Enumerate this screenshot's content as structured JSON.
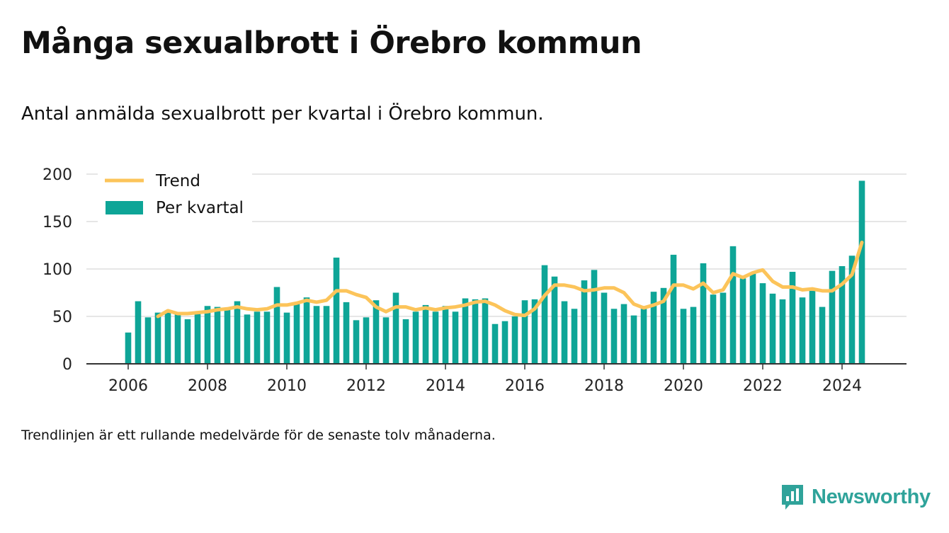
{
  "header": {
    "title": "Många sexualbrott i Örebro kommun",
    "subtitle": "Antal anmälda sexualbrott per kvartal i Örebro kommun."
  },
  "footer": {
    "note": "Trendlinjen är ett rullande medelvärde för de senaste tolv månaderna.",
    "brand": "Newsworthy",
    "brand_icon": "bar-chart-speech-bubble-icon"
  },
  "colors": {
    "bars": "#0ea597",
    "trend": "#fcc45a",
    "grid": "#dddddd",
    "axis": "#333333",
    "brand": "#2fa39a"
  },
  "chart_data": {
    "type": "bar",
    "x_unit": "quarter",
    "x_start": "2006 Q1",
    "x_end": "2024 Q3",
    "ylim": [
      0,
      200
    ],
    "yticks": [
      "0",
      "50",
      "100",
      "150",
      "200"
    ],
    "xticks": [
      "2006",
      "2008",
      "2010",
      "2012",
      "2014",
      "2016",
      "2018",
      "2020",
      "2022",
      "2024"
    ],
    "grid": "horizontal",
    "legend_position": "top-left",
    "series": [
      {
        "name": "Per kvartal",
        "kind": "bar",
        "values": [
          33,
          66,
          49,
          54,
          55,
          52,
          47,
          55,
          61,
          60,
          57,
          66,
          52,
          55,
          55,
          81,
          54,
          64,
          70,
          61,
          61,
          112,
          65,
          46,
          49,
          67,
          49,
          75,
          47,
          55,
          62,
          55,
          61,
          55,
          69,
          68,
          69,
          42,
          45,
          50,
          67,
          68,
          104,
          92,
          66,
          58,
          88,
          99,
          75,
          58,
          63,
          51,
          58,
          76,
          80,
          115,
          58,
          60,
          106,
          73,
          75,
          124,
          90,
          95,
          85,
          74,
          68,
          97,
          70,
          77,
          60,
          98,
          103,
          114,
          193
        ]
      },
      {
        "name": "Trend",
        "kind": "line",
        "values": [
          null,
          null,
          null,
          50,
          56,
          53,
          53,
          54,
          55,
          57,
          58,
          60,
          58,
          57,
          58,
          62,
          62,
          64,
          67,
          65,
          67,
          77,
          77,
          73,
          70,
          60,
          55,
          60,
          60,
          57,
          59,
          57,
          59,
          60,
          62,
          65,
          66,
          62,
          56,
          52,
          51,
          58,
          72,
          83,
          83,
          81,
          77,
          78,
          80,
          80,
          75,
          63,
          59,
          62,
          66,
          83,
          83,
          79,
          85,
          75,
          78,
          95,
          91,
          96,
          99,
          87,
          81,
          81,
          78,
          79,
          77,
          77,
          84,
          94,
          128
        ]
      }
    ]
  }
}
